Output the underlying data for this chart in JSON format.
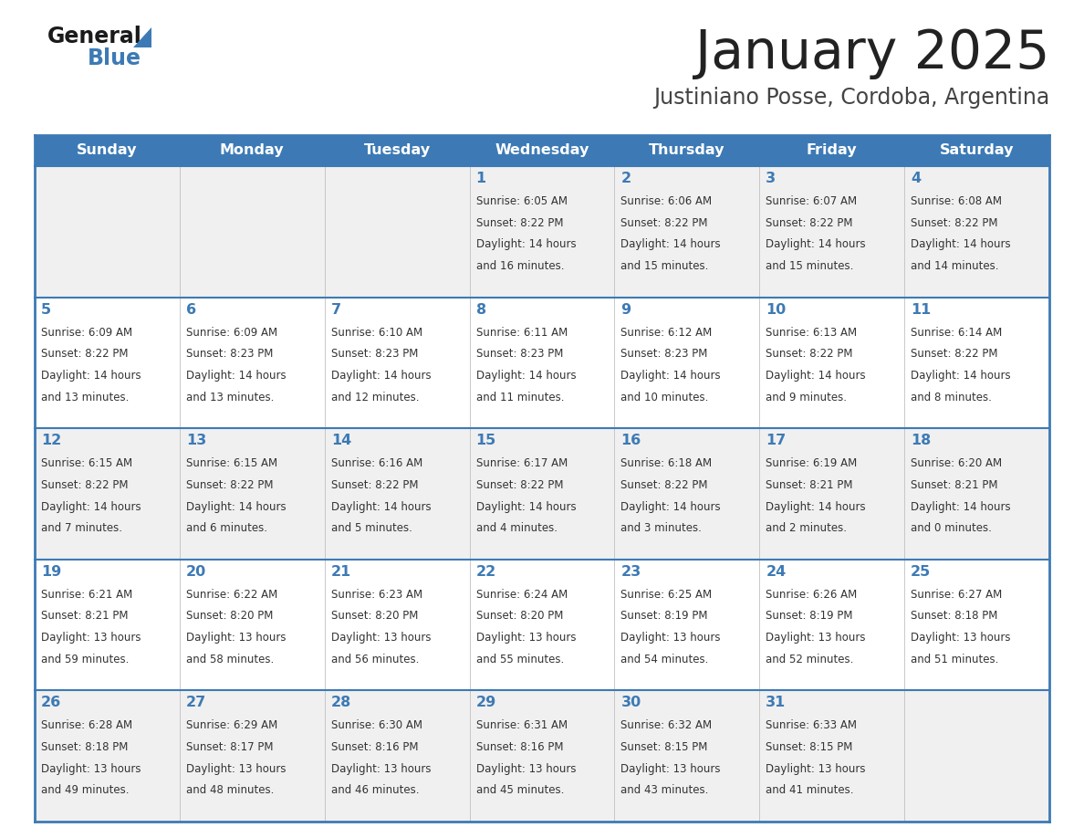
{
  "title": "January 2025",
  "subtitle": "Justiniano Posse, Cordoba, Argentina",
  "days_of_week": [
    "Sunday",
    "Monday",
    "Tuesday",
    "Wednesday",
    "Thursday",
    "Friday",
    "Saturday"
  ],
  "header_bg": "#3d7ab5",
  "header_text": "#ffffff",
  "row_bg_even": "#f0f0f0",
  "row_bg_odd": "#ffffff",
  "border_color": "#3d7ab5",
  "day_number_color": "#3d7ab5",
  "text_color": "#333333",
  "title_color": "#222222",
  "subtitle_color": "#444444",
  "logo_general_color": "#1a1a1a",
  "logo_blue_color": "#3d7ab5",
  "logo_triangle_color": "#3d7ab5",
  "weeks": [
    {
      "days": [
        {
          "date": null,
          "sunrise": null,
          "sunset": null,
          "daylight_h": null,
          "daylight_m": null
        },
        {
          "date": null,
          "sunrise": null,
          "sunset": null,
          "daylight_h": null,
          "daylight_m": null
        },
        {
          "date": null,
          "sunrise": null,
          "sunset": null,
          "daylight_h": null,
          "daylight_m": null
        },
        {
          "date": 1,
          "sunrise": "6:05 AM",
          "sunset": "8:22 PM",
          "daylight_h": "14 hours",
          "daylight_m": "and 16 minutes."
        },
        {
          "date": 2,
          "sunrise": "6:06 AM",
          "sunset": "8:22 PM",
          "daylight_h": "14 hours",
          "daylight_m": "and 15 minutes."
        },
        {
          "date": 3,
          "sunrise": "6:07 AM",
          "sunset": "8:22 PM",
          "daylight_h": "14 hours",
          "daylight_m": "and 15 minutes."
        },
        {
          "date": 4,
          "sunrise": "6:08 AM",
          "sunset": "8:22 PM",
          "daylight_h": "14 hours",
          "daylight_m": "and 14 minutes."
        }
      ]
    },
    {
      "days": [
        {
          "date": 5,
          "sunrise": "6:09 AM",
          "sunset": "8:22 PM",
          "daylight_h": "14 hours",
          "daylight_m": "and 13 minutes."
        },
        {
          "date": 6,
          "sunrise": "6:09 AM",
          "sunset": "8:23 PM",
          "daylight_h": "14 hours",
          "daylight_m": "and 13 minutes."
        },
        {
          "date": 7,
          "sunrise": "6:10 AM",
          "sunset": "8:23 PM",
          "daylight_h": "14 hours",
          "daylight_m": "and 12 minutes."
        },
        {
          "date": 8,
          "sunrise": "6:11 AM",
          "sunset": "8:23 PM",
          "daylight_h": "14 hours",
          "daylight_m": "and 11 minutes."
        },
        {
          "date": 9,
          "sunrise": "6:12 AM",
          "sunset": "8:23 PM",
          "daylight_h": "14 hours",
          "daylight_m": "and 10 minutes."
        },
        {
          "date": 10,
          "sunrise": "6:13 AM",
          "sunset": "8:22 PM",
          "daylight_h": "14 hours",
          "daylight_m": "and 9 minutes."
        },
        {
          "date": 11,
          "sunrise": "6:14 AM",
          "sunset": "8:22 PM",
          "daylight_h": "14 hours",
          "daylight_m": "and 8 minutes."
        }
      ]
    },
    {
      "days": [
        {
          "date": 12,
          "sunrise": "6:15 AM",
          "sunset": "8:22 PM",
          "daylight_h": "14 hours",
          "daylight_m": "and 7 minutes."
        },
        {
          "date": 13,
          "sunrise": "6:15 AM",
          "sunset": "8:22 PM",
          "daylight_h": "14 hours",
          "daylight_m": "and 6 minutes."
        },
        {
          "date": 14,
          "sunrise": "6:16 AM",
          "sunset": "8:22 PM",
          "daylight_h": "14 hours",
          "daylight_m": "and 5 minutes."
        },
        {
          "date": 15,
          "sunrise": "6:17 AM",
          "sunset": "8:22 PM",
          "daylight_h": "14 hours",
          "daylight_m": "and 4 minutes."
        },
        {
          "date": 16,
          "sunrise": "6:18 AM",
          "sunset": "8:22 PM",
          "daylight_h": "14 hours",
          "daylight_m": "and 3 minutes."
        },
        {
          "date": 17,
          "sunrise": "6:19 AM",
          "sunset": "8:21 PM",
          "daylight_h": "14 hours",
          "daylight_m": "and 2 minutes."
        },
        {
          "date": 18,
          "sunrise": "6:20 AM",
          "sunset": "8:21 PM",
          "daylight_h": "14 hours",
          "daylight_m": "and 0 minutes."
        }
      ]
    },
    {
      "days": [
        {
          "date": 19,
          "sunrise": "6:21 AM",
          "sunset": "8:21 PM",
          "daylight_h": "13 hours",
          "daylight_m": "and 59 minutes."
        },
        {
          "date": 20,
          "sunrise": "6:22 AM",
          "sunset": "8:20 PM",
          "daylight_h": "13 hours",
          "daylight_m": "and 58 minutes."
        },
        {
          "date": 21,
          "sunrise": "6:23 AM",
          "sunset": "8:20 PM",
          "daylight_h": "13 hours",
          "daylight_m": "and 56 minutes."
        },
        {
          "date": 22,
          "sunrise": "6:24 AM",
          "sunset": "8:20 PM",
          "daylight_h": "13 hours",
          "daylight_m": "and 55 minutes."
        },
        {
          "date": 23,
          "sunrise": "6:25 AM",
          "sunset": "8:19 PM",
          "daylight_h": "13 hours",
          "daylight_m": "and 54 minutes."
        },
        {
          "date": 24,
          "sunrise": "6:26 AM",
          "sunset": "8:19 PM",
          "daylight_h": "13 hours",
          "daylight_m": "and 52 minutes."
        },
        {
          "date": 25,
          "sunrise": "6:27 AM",
          "sunset": "8:18 PM",
          "daylight_h": "13 hours",
          "daylight_m": "and 51 minutes."
        }
      ]
    },
    {
      "days": [
        {
          "date": 26,
          "sunrise": "6:28 AM",
          "sunset": "8:18 PM",
          "daylight_h": "13 hours",
          "daylight_m": "and 49 minutes."
        },
        {
          "date": 27,
          "sunrise": "6:29 AM",
          "sunset": "8:17 PM",
          "daylight_h": "13 hours",
          "daylight_m": "and 48 minutes."
        },
        {
          "date": 28,
          "sunrise": "6:30 AM",
          "sunset": "8:16 PM",
          "daylight_h": "13 hours",
          "daylight_m": "and 46 minutes."
        },
        {
          "date": 29,
          "sunrise": "6:31 AM",
          "sunset": "8:16 PM",
          "daylight_h": "13 hours",
          "daylight_m": "and 45 minutes."
        },
        {
          "date": 30,
          "sunrise": "6:32 AM",
          "sunset": "8:15 PM",
          "daylight_h": "13 hours",
          "daylight_m": "and 43 minutes."
        },
        {
          "date": 31,
          "sunrise": "6:33 AM",
          "sunset": "8:15 PM",
          "daylight_h": "13 hours",
          "daylight_m": "and 41 minutes."
        },
        {
          "date": null,
          "sunrise": null,
          "sunset": null,
          "daylight_h": null,
          "daylight_m": null
        }
      ]
    }
  ]
}
